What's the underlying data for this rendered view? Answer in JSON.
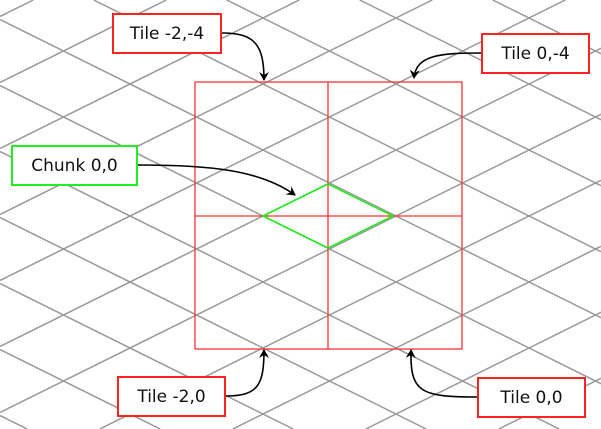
{
  "labels": {
    "tile_m2_m4": "Tile -2,-4",
    "tile_0_m4": "Tile 0,-4",
    "chunk_0_0": "Chunk 0,0",
    "tile_m2_0": "Tile -2,0",
    "tile_0_0": "Tile 0,0"
  },
  "colors": {
    "grid": "#999999",
    "tile": "#ff2222",
    "chunk": "#22ee22",
    "arrow": "#000000"
  }
}
